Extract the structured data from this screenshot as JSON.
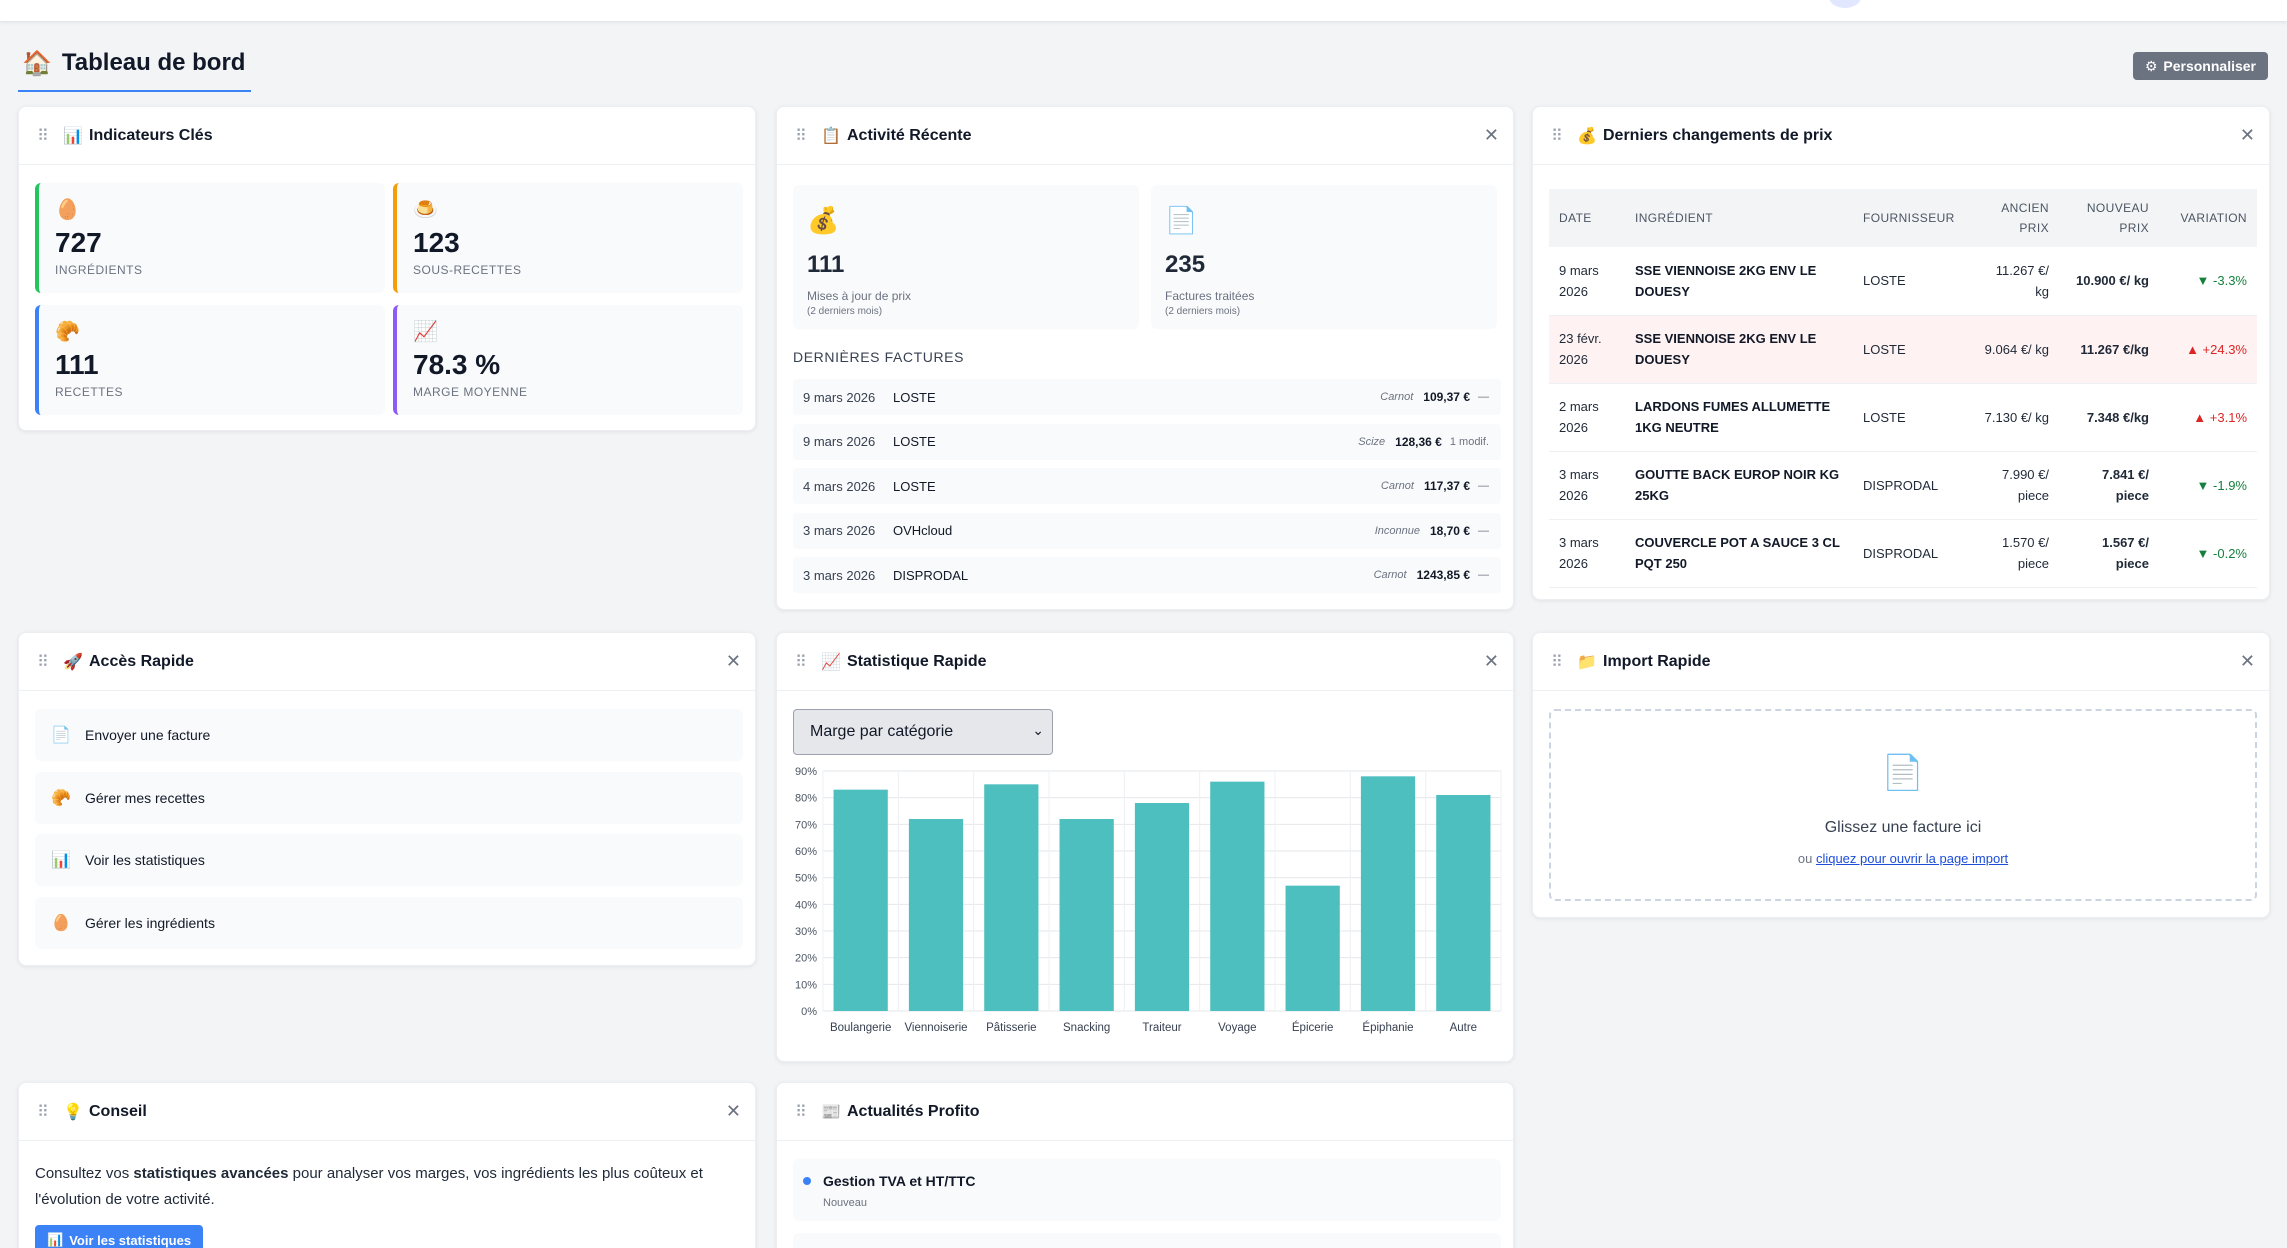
{
  "header": {
    "title": "Tableau de bord",
    "title_icon": "house-icon",
    "personalize_label": "Personnaliser"
  },
  "kpi": {
    "title": "Indicateurs Clés",
    "cards": [
      {
        "icon": "egg-icon",
        "emoji": "🥚",
        "value": "727",
        "label": "INGRÉDIENTS",
        "color": "#22c55e"
      },
      {
        "icon": "pudding-icon",
        "emoji": "🍮",
        "value": "123",
        "label": "SOUS-RECETTES",
        "color": "#f59e0b"
      },
      {
        "icon": "croissant-icon",
        "emoji": "🥐",
        "value": "111",
        "label": "RECETTES",
        "color": "#3b82f6"
      },
      {
        "icon": "chart-up-icon",
        "emoji": "📈",
        "value": "78.3 %",
        "label": "MARGE MOYENNE",
        "color": "#8b5cf6"
      }
    ]
  },
  "activity": {
    "title": "Activité Récente",
    "cards": [
      {
        "emoji": "💰",
        "value": "111",
        "label": "Mises à jour de prix",
        "sub": "(2 derniers mois)"
      },
      {
        "emoji": "📄",
        "value": "235",
        "label": "Factures traitées",
        "sub": "(2 derniers mois)"
      }
    ],
    "invoices_label": "DERNIÈRES FACTURES",
    "invoices": [
      {
        "date": "9 mars 2026",
        "supplier": "LOSTE",
        "meta": "Carnot",
        "amount": "109,37 €",
        "extra": "—"
      },
      {
        "date": "9 mars 2026",
        "supplier": "LOSTE",
        "meta": "Scize",
        "amount": "128,36 €",
        "extra": "1 modif."
      },
      {
        "date": "4 mars 2026",
        "supplier": "LOSTE",
        "meta": "Carnot",
        "amount": "117,37 €",
        "extra": "—"
      },
      {
        "date": "3 mars 2026",
        "supplier": "OVHcloud",
        "meta": "Inconnue",
        "amount": "18,70 €",
        "extra": "—"
      },
      {
        "date": "3 mars 2026",
        "supplier": "DISPRODAL",
        "meta": "Carnot",
        "amount": "1243,85 €",
        "extra": "—"
      }
    ]
  },
  "prices": {
    "title": "Derniers changements de prix",
    "headers": [
      "DATE",
      "INGRÉDIENT",
      "FOURNISSEUR",
      "ANCIEN PRIX",
      "NOUVEAU PRIX",
      "VARIATION"
    ],
    "rows": [
      {
        "date": "9 mars 2026",
        "ingredient": "SSE VIENNOISE 2KG ENV LE DOUESY",
        "supplier": "LOSTE",
        "old": "11.267 €/ kg",
        "new": "10.900 €/ kg",
        "variation": "▼ -3.3%",
        "trend": "down"
      },
      {
        "date": "23 févr. 2026",
        "ingredient": "SSE VIENNOISE 2KG ENV LE DOUESY",
        "supplier": "LOSTE",
        "old": "9.064 €/ kg",
        "new": "11.267 €/kg",
        "variation": "▲ +24.3%",
        "trend": "up"
      },
      {
        "date": "2 mars 2026",
        "ingredient": "LARDONS FUMES ALLUMETTE 1KG NEUTRE",
        "supplier": "LOSTE",
        "old": "7.130 €/ kg",
        "new": "7.348 €/kg",
        "variation": "▲ +3.1%",
        "trend": "up"
      },
      {
        "date": "3 mars 2026",
        "ingredient": "GOUTTE BACK EUROP NOIR KG 25KG",
        "supplier": "DISPRODAL",
        "old": "7.990 €/ piece",
        "new": "7.841 €/ piece",
        "variation": "▼ -1.9%",
        "trend": "down"
      },
      {
        "date": "3 mars 2026",
        "ingredient": "COUVERCLE POT A SAUCE 3 CL PQT 250",
        "supplier": "DISPRODAL",
        "old": "1.570 €/ piece",
        "new": "1.567 €/ piece",
        "variation": "▼ -0.2%",
        "trend": "down"
      }
    ]
  },
  "quick": {
    "title": "Accès Rapide",
    "items": [
      {
        "emoji": "📄",
        "label": "Envoyer une facture"
      },
      {
        "emoji": "🥐",
        "label": "Gérer mes recettes"
      },
      {
        "emoji": "📊",
        "label": "Voir les statistiques"
      },
      {
        "emoji": "🥚",
        "label": "Gérer les ingrédients"
      }
    ]
  },
  "stats": {
    "title": "Statistique Rapide",
    "select_value": "Marge par catégorie"
  },
  "import": {
    "title": "Import Rapide",
    "drop_main": "Glissez une facture ici",
    "drop_or": "ou",
    "drop_link": "cliquez pour ouvrir la page import"
  },
  "tip": {
    "title": "Conseil",
    "text_before": "Consultez vos ",
    "text_bold": "statistiques avancées",
    "text_after": " pour analyser vos marges, vos ingrédients les plus coûteux et l'évolution de votre activité.",
    "button_label": "Voir les statistiques"
  },
  "news": {
    "title": "Actualités Profito",
    "items": [
      {
        "title": "Gestion TVA et HT/TTC",
        "badge": "Nouveau",
        "dot": "#3b82f6"
      }
    ]
  },
  "chart_data": {
    "type": "bar",
    "categories": [
      "Boulangerie",
      "Viennoiserie",
      "Pâtisserie",
      "Snacking",
      "Traiteur",
      "Voyage",
      "Épicerie",
      "Épiphanie",
      "Autre"
    ],
    "values": [
      83,
      72,
      85,
      72,
      78,
      86,
      47,
      88,
      81
    ],
    "ylim": [
      0,
      90
    ],
    "yticks": [
      "0%",
      "10%",
      "20%",
      "30%",
      "40%",
      "50%",
      "60%",
      "70%",
      "80%",
      "90%"
    ],
    "color": "#4dbfbf",
    "grid": true
  }
}
